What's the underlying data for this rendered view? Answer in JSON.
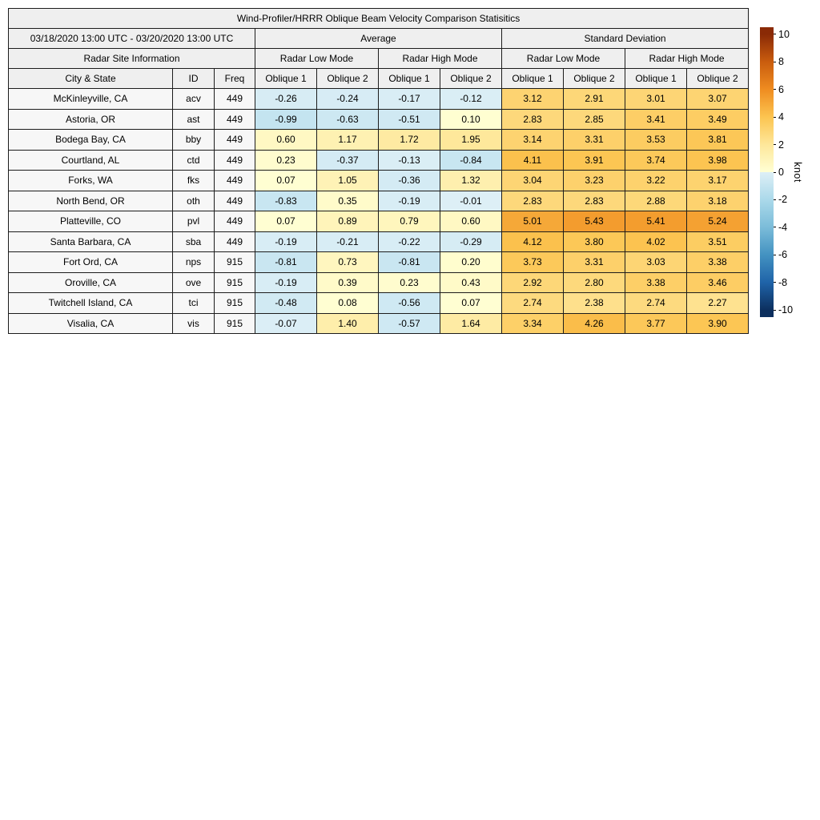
{
  "title": "Wind-Profiler/HRRR Oblique Beam Velocity Comparison Statisitics",
  "table": {
    "date_range": "03/18/2020 13:00 UTC - 03/20/2020 13:00 UTC",
    "site_info_header": "Radar Site Information",
    "group_headers": [
      "Average",
      "Standard Deviation"
    ],
    "mode_headers": [
      "Radar Low Mode",
      "Radar High Mode",
      "Radar Low Mode",
      "Radar High Mode"
    ],
    "col_headers": [
      "City & State",
      "ID",
      "Freq"
    ],
    "oblique_headers": [
      "Oblique 1",
      "Oblique 2"
    ]
  },
  "colorbar": {
    "label": "knot",
    "min": -10,
    "max": 10,
    "display_range": [
      -10.5,
      10.5
    ],
    "ticks": [
      10,
      8,
      6,
      4,
      2,
      0,
      -2,
      -4,
      -6,
      -8,
      -10
    ],
    "stops": [
      {
        "v": 10,
        "c": "#8a2a06"
      },
      {
        "v": 8,
        "c": "#c95c0e"
      },
      {
        "v": 6,
        "c": "#ef8c20"
      },
      {
        "v": 4,
        "c": "#fcc450"
      },
      {
        "v": 2,
        "c": "#fee79a"
      },
      {
        "v": 0.01,
        "c": "#ffffd4"
      },
      {
        "v": -0.01,
        "c": "#ddeff6"
      },
      {
        "v": -2,
        "c": "#abd9ea"
      },
      {
        "v": -4,
        "c": "#7bbcd9"
      },
      {
        "v": -6,
        "c": "#4392c1"
      },
      {
        "v": -8,
        "c": "#1f63a8"
      },
      {
        "v": -10,
        "c": "#0c2f5e"
      }
    ]
  },
  "chart_data": {
    "type": "heatmap",
    "title": "Wind-Profiler/HRRR Oblique Beam Velocity Comparison Statisitics",
    "period": "03/18/2020 13:00 UTC - 03/20/2020 13:00 UTC",
    "unit": "knot",
    "color_range": [
      -10,
      10
    ],
    "legend_position": "right",
    "column_groups": [
      "Average / Radar Low Mode",
      "Average / Radar High Mode",
      "Standard Deviation / Radar Low Mode",
      "Standard Deviation / Radar High Mode"
    ],
    "value_columns": [
      "Avg Low Oblique 1",
      "Avg Low Oblique 2",
      "Avg High Oblique 1",
      "Avg High Oblique 2",
      "SD Low Oblique 1",
      "SD Low Oblique 2",
      "SD High Oblique 1",
      "SD High Oblique 2"
    ],
    "rows": [
      {
        "city": "McKinleyville, CA",
        "id": "acv",
        "freq": "449",
        "values": [
          -0.26,
          -0.24,
          -0.17,
          -0.12,
          3.12,
          2.91,
          3.01,
          3.07
        ]
      },
      {
        "city": "Astoria, OR",
        "id": "ast",
        "freq": "449",
        "values": [
          -0.99,
          -0.63,
          -0.51,
          0.1,
          2.83,
          2.85,
          3.41,
          3.49
        ]
      },
      {
        "city": "Bodega Bay, CA",
        "id": "bby",
        "freq": "449",
        "values": [
          0.6,
          1.17,
          1.72,
          1.95,
          3.14,
          3.31,
          3.53,
          3.81
        ]
      },
      {
        "city": "Courtland, AL",
        "id": "ctd",
        "freq": "449",
        "values": [
          0.23,
          -0.37,
          -0.13,
          -0.84,
          4.11,
          3.91,
          3.74,
          3.98
        ]
      },
      {
        "city": "Forks, WA",
        "id": "fks",
        "freq": "449",
        "values": [
          0.07,
          1.05,
          -0.36,
          1.32,
          3.04,
          3.23,
          3.22,
          3.17
        ]
      },
      {
        "city": "North Bend, OR",
        "id": "oth",
        "freq": "449",
        "values": [
          -0.83,
          0.35,
          -0.19,
          -0.01,
          2.83,
          2.83,
          2.88,
          3.18
        ]
      },
      {
        "city": "Platteville, CO",
        "id": "pvl",
        "freq": "449",
        "values": [
          0.07,
          0.89,
          0.79,
          0.6,
          5.01,
          5.43,
          5.41,
          5.24
        ]
      },
      {
        "city": "Santa Barbara, CA",
        "id": "sba",
        "freq": "449",
        "values": [
          -0.19,
          -0.21,
          -0.22,
          -0.29,
          4.12,
          3.8,
          4.02,
          3.51
        ]
      },
      {
        "city": "Fort Ord, CA",
        "id": "nps",
        "freq": "915",
        "values": [
          -0.81,
          0.73,
          -0.81,
          0.2,
          3.73,
          3.31,
          3.03,
          3.38
        ]
      },
      {
        "city": "Oroville, CA",
        "id": "ove",
        "freq": "915",
        "values": [
          -0.19,
          0.39,
          0.23,
          0.43,
          2.92,
          2.8,
          3.38,
          3.46
        ]
      },
      {
        "city": "Twitchell Island, CA",
        "id": "tci",
        "freq": "915",
        "values": [
          -0.48,
          0.08,
          -0.56,
          0.07,
          2.74,
          2.38,
          2.74,
          2.27
        ]
      },
      {
        "city": "Visalia, CA",
        "id": "vis",
        "freq": "915",
        "values": [
          -0.07,
          1.4,
          -0.57,
          1.64,
          3.34,
          4.26,
          3.77,
          3.9
        ]
      }
    ]
  }
}
